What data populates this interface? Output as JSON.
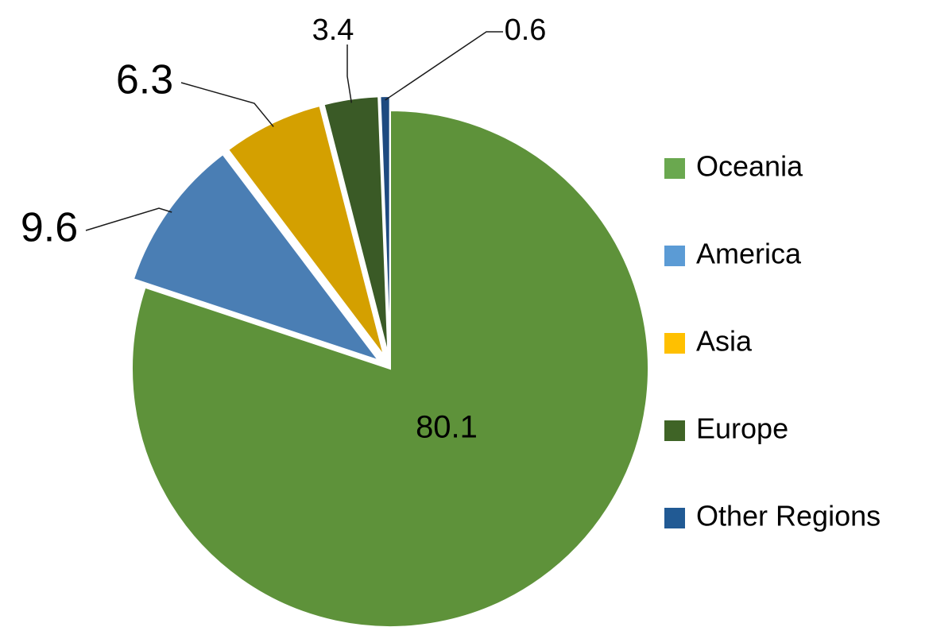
{
  "chart_data": {
    "type": "pie",
    "title": "",
    "categories": [
      "Oceania",
      "America",
      "Asia",
      "Europe",
      "Other Regions"
    ],
    "values": [
      80.1,
      9.6,
      6.3,
      3.4,
      0.6
    ],
    "colors": [
      "#5e923a",
      "#4a7eb4",
      "#d4a000",
      "#3a5a26",
      "#1e4a80"
    ],
    "legend_colors": [
      "#6aa84f",
      "#5b9bd5",
      "#ffc000",
      "#3f6426",
      "#215a94"
    ],
    "data_labels": [
      "80.1",
      "9.6",
      "6.3",
      "3.4",
      "0.6"
    ],
    "exploded": [
      false,
      true,
      true,
      true,
      true
    ],
    "start_angle": "12 o'clock",
    "direction": "clockwise",
    "legend_position": "right"
  }
}
